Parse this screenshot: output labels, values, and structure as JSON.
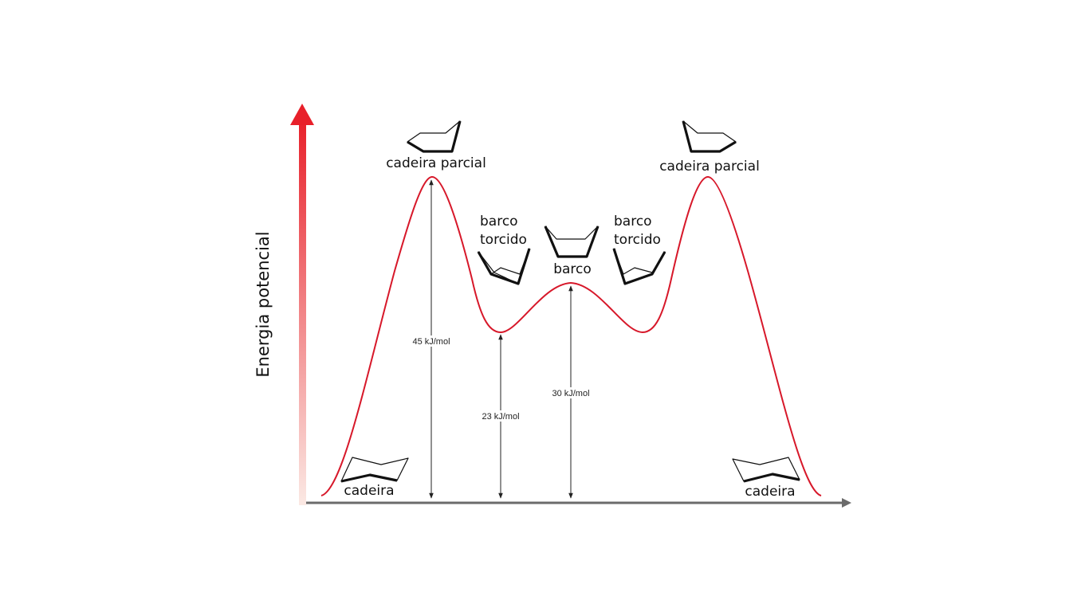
{
  "colors": {
    "curve": "#d7182a",
    "axis": "#6b6b6b",
    "arrow_top": "#e8202a",
    "arrow_bottom": "#fbe9e4",
    "molecule": "#111111"
  },
  "y_axis_label": "Energia potencial",
  "conformations": [
    {
      "label": "cadeira",
      "icon": "chair-conformation-icon",
      "relative_energy": 0
    },
    {
      "label": "cadeira parcial",
      "icon": "half-chair-conformation-icon",
      "relative_energy": 45
    },
    {
      "label_lines": [
        "barco",
        "torcido"
      ],
      "icon": "twist-boat-conformation-icon",
      "relative_energy": 23
    },
    {
      "label": "barco",
      "icon": "boat-conformation-icon",
      "relative_energy": 30
    },
    {
      "label_lines": [
        "barco",
        "torcido"
      ],
      "icon": "twist-boat-conformation-icon",
      "relative_energy": 23
    },
    {
      "label": "cadeira parcial",
      "icon": "half-chair-conformation-icon",
      "relative_energy": 45
    },
    {
      "label": "cadeira",
      "icon": "chair-conformation-icon",
      "relative_energy": 0
    }
  ],
  "measurements": [
    {
      "label": "45 kJ/mol",
      "value": 45
    },
    {
      "label": "23 kJ/mol",
      "value": 23
    },
    {
      "label": "30 kJ/mol",
      "value": 30
    }
  ]
}
